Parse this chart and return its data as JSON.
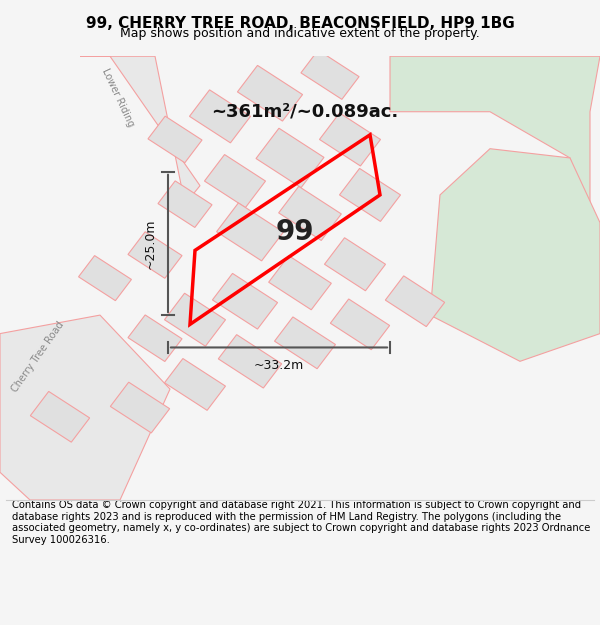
{
  "title": "99, CHERRY TREE ROAD, BEACONSFIELD, HP9 1BG",
  "subtitle": "Map shows position and indicative extent of the property.",
  "footer": "Contains OS data © Crown copyright and database right 2021. This information is subject to Crown copyright and database rights 2023 and is reproduced with the permission of HM Land Registry. The polygons (including the associated geometry, namely x, y co-ordinates) are subject to Crown copyright and database rights 2023 Ordnance Survey 100026316.",
  "area_label": "~361m²/~0.089ac.",
  "property_number": "99",
  "dim_width": "~33.2m",
  "dim_height": "~25.0m",
  "bg_color": "#f5f5f5",
  "map_bg": "#ffffff",
  "green_area_color": "#d6e8d6",
  "road_fill": "#e8e8e8",
  "building_fill": "#e0e0e0",
  "plot_outline_color": "#ff0000",
  "road_stroke": "#f4a0a0",
  "dim_line_color": "#555555",
  "title_fontsize": 11,
  "subtitle_fontsize": 9,
  "footer_fontsize": 7.2,
  "label_fontsize": 14,
  "area_fontsize": 13,
  "number_fontsize": 20
}
